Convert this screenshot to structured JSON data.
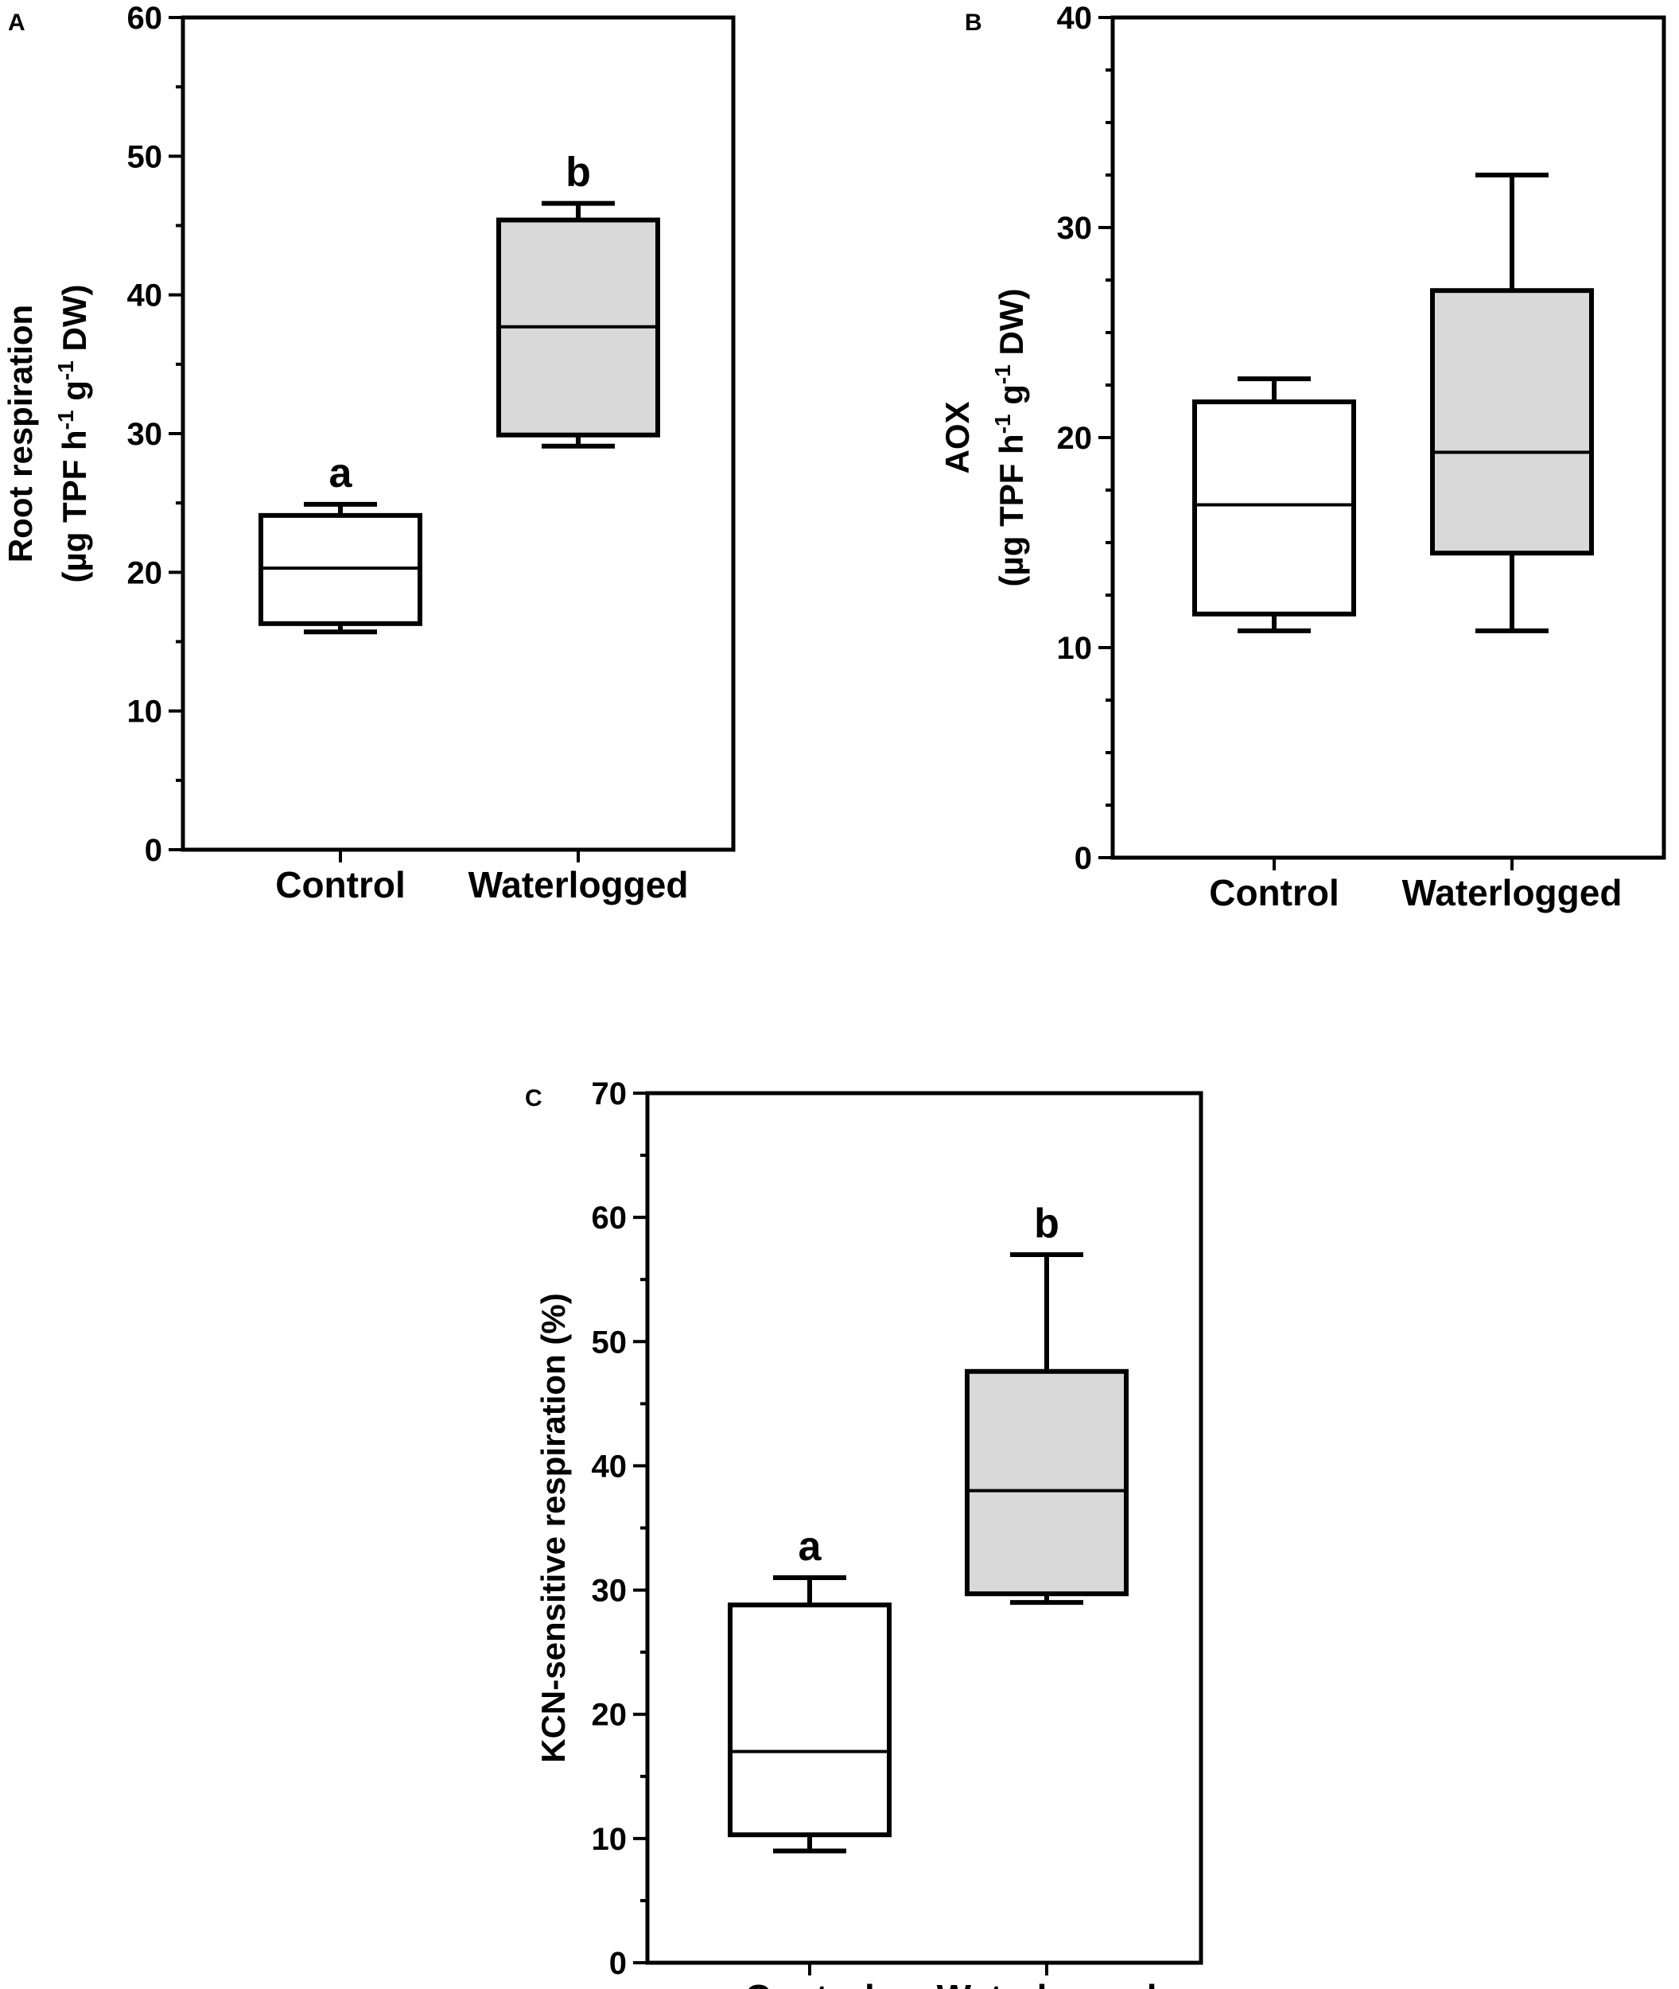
{
  "figure": {
    "colors": {
      "axis": "#000000",
      "control_fill": "#ffffff",
      "waterlogged_fill": "#d9d9d9"
    }
  },
  "chart_data": [
    {
      "panel": "A",
      "type": "box",
      "categories": [
        "Control",
        "Waterlogged"
      ],
      "ylabel": [
        "Root respiration",
        "(µg TPF h",
        "-1",
        " g",
        "-1",
        " DW)"
      ],
      "ylim": [
        0,
        60
      ],
      "major_ticks": [
        0,
        10,
        20,
        30,
        40,
        50,
        60
      ],
      "minor_step": 5,
      "boxes": [
        {
          "name": "Control",
          "min": 15.7,
          "q1": 16.3,
          "median": 20.3,
          "q3": 24.1,
          "max": 24.9,
          "letter": "a",
          "fill": "#ffffff"
        },
        {
          "name": "Waterlogged",
          "min": 29.1,
          "q1": 29.9,
          "median": 37.7,
          "q3": 45.4,
          "max": 46.6,
          "letter": "b",
          "fill": "#d9d9d9"
        }
      ],
      "xlabel": "",
      "title": "",
      "grid": false
    },
    {
      "panel": "B",
      "type": "box",
      "categories": [
        "Control",
        "Waterlogged"
      ],
      "ylabel": [
        "AOX",
        "(µg TPF h",
        "-1",
        " g",
        "-1",
        " DW)"
      ],
      "ylim": [
        0,
        40
      ],
      "major_ticks": [
        0,
        10,
        20,
        30,
        40
      ],
      "minor_step": 2.5,
      "boxes": [
        {
          "name": "Control",
          "min": 10.8,
          "q1": 11.6,
          "median": 16.8,
          "q3": 21.7,
          "max": 22.8,
          "letter": "",
          "fill": "#ffffff"
        },
        {
          "name": "Waterlogged",
          "min": 10.8,
          "q1": 14.5,
          "median": 19.3,
          "q3": 27.0,
          "max": 32.5,
          "letter": "",
          "fill": "#d9d9d9"
        }
      ],
      "xlabel": "",
      "title": "",
      "grid": false
    },
    {
      "panel": "C",
      "type": "box",
      "categories": [
        "Control",
        "Waterlogged"
      ],
      "ylabel": [
        "KCN-sensitive respiration (%)"
      ],
      "ylim": [
        0,
        70
      ],
      "major_ticks": [
        0,
        10,
        20,
        30,
        40,
        50,
        60,
        70
      ],
      "minor_step": 5,
      "boxes": [
        {
          "name": "Control",
          "min": 9.0,
          "q1": 10.3,
          "median": 17.0,
          "q3": 28.8,
          "max": 31.0,
          "letter": "a",
          "fill": "#ffffff"
        },
        {
          "name": "Waterlogged",
          "min": 29.0,
          "q1": 29.7,
          "median": 38.0,
          "q3": 47.6,
          "max": 57.0,
          "letter": "b",
          "fill": "#d9d9d9"
        }
      ],
      "xlabel": "",
      "title": "",
      "grid": false
    }
  ]
}
